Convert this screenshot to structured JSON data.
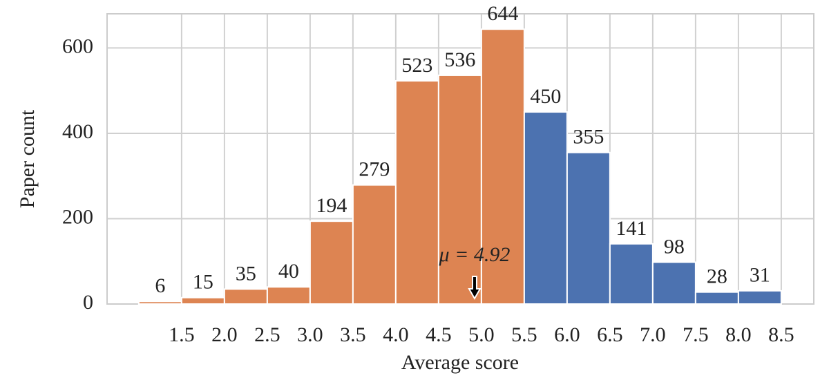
{
  "chart_data": {
    "type": "histogram",
    "xlabel": "Average score",
    "ylabel": "Paper count",
    "bins": [
      1.0,
      1.5,
      2.0,
      2.5,
      3.0,
      3.5,
      4.0,
      4.5,
      5.0,
      5.5,
      6.0,
      6.5,
      7.0,
      7.5,
      8.0,
      8.5
    ],
    "values": [
      6,
      15,
      35,
      40,
      194,
      279,
      523,
      536,
      644,
      450,
      355,
      141,
      98,
      28,
      31
    ],
    "colors": [
      "#dd8452",
      "#dd8452",
      "#dd8452",
      "#dd8452",
      "#dd8452",
      "#dd8452",
      "#dd8452",
      "#dd8452",
      "#dd8452",
      "#4c72b0",
      "#4c72b0",
      "#4c72b0",
      "#4c72b0",
      "#4c72b0",
      "#4c72b0"
    ],
    "xlim": [
      0.63,
      8.88
    ],
    "ylim": [
      0,
      680
    ],
    "xticks": [
      {
        "value": 1.5,
        "label": "1.5"
      },
      {
        "value": 2.0,
        "label": "2.0"
      },
      {
        "value": 2.5,
        "label": "2.5"
      },
      {
        "value": 3.0,
        "label": "3.0"
      },
      {
        "value": 3.5,
        "label": "3.5"
      },
      {
        "value": 4.0,
        "label": "4.0"
      },
      {
        "value": 4.5,
        "label": "4.5"
      },
      {
        "value": 5.0,
        "label": "5.0"
      },
      {
        "value": 5.5,
        "label": "5.5"
      },
      {
        "value": 6.0,
        "label": "6.0"
      },
      {
        "value": 6.5,
        "label": "6.5"
      },
      {
        "value": 7.0,
        "label": "7.0"
      },
      {
        "value": 7.5,
        "label": "7.5"
      },
      {
        "value": 8.0,
        "label": "8.0"
      },
      {
        "value": 8.5,
        "label": "8.5"
      }
    ],
    "yticks": [
      0,
      200,
      400,
      600
    ],
    "grid": true,
    "annotation": {
      "text": "μ = 4.92",
      "x": 4.92
    }
  }
}
